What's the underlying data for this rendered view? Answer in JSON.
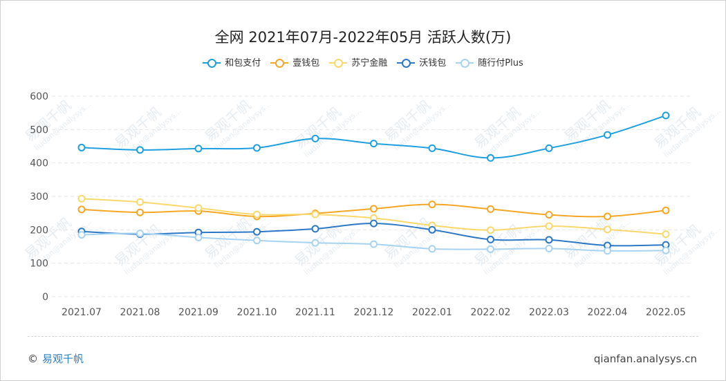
{
  "footer": {
    "copyright_symbol": "©",
    "brand": "易观千帆",
    "site": "qianfan.analysys.cn"
  },
  "watermark": {
    "brand": "易观千帆",
    "email": "liudan@analysys..."
  },
  "chart_data": {
    "type": "line",
    "title": "全网 2021年07月-2022年05月 活跃人数(万)",
    "xlabel": "",
    "ylabel": "",
    "categories": [
      "2021.07",
      "2021.08",
      "2021.09",
      "2021.10",
      "2021.11",
      "2021.12",
      "2022.01",
      "2022.02",
      "2022.03",
      "2022.04",
      "2022.05"
    ],
    "ylim": [
      0,
      600
    ],
    "yticks": [
      0,
      100,
      200,
      300,
      400,
      500,
      600
    ],
    "grid": true,
    "legend_position": "top",
    "series": [
      {
        "name": "和包支付",
        "color": "#1e9fe0",
        "values": [
          446,
          439,
          443,
          445,
          473,
          458,
          444,
          415,
          444,
          484,
          542
        ]
      },
      {
        "name": "壹钱包",
        "color": "#f5a623",
        "values": [
          261,
          252,
          256,
          240,
          249,
          263,
          276,
          262,
          245,
          240,
          258
        ]
      },
      {
        "name": "苏宁金融",
        "color": "#fbd86a",
        "values": [
          293,
          283,
          265,
          246,
          246,
          235,
          213,
          199,
          211,
          201,
          187
        ]
      },
      {
        "name": "沃钱包",
        "color": "#2b78c6",
        "values": [
          195,
          187,
          192,
          194,
          203,
          219,
          200,
          171,
          170,
          153,
          155
        ]
      },
      {
        "name": "随行付Plus",
        "color": "#a7d3f2",
        "values": [
          185,
          189,
          177,
          168,
          161,
          157,
          143,
          142,
          144,
          137,
          138
        ]
      }
    ]
  }
}
